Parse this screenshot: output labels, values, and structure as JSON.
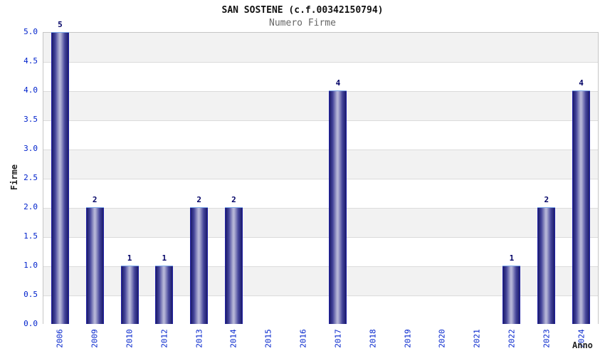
{
  "header": {
    "title": "SAN SOSTENE (c.f.00342150794)",
    "subtitle": "Numero Firme"
  },
  "chart_data": {
    "type": "bar",
    "title": "SAN SOSTENE (c.f.00342150794)",
    "subtitle": "Numero Firme",
    "xlabel": "Anno",
    "ylabel": "Firme",
    "categories": [
      "2006",
      "2009",
      "2010",
      "2012",
      "2013",
      "2014",
      "2015",
      "2016",
      "2017",
      "2018",
      "2019",
      "2020",
      "2021",
      "2022",
      "2023",
      "2024"
    ],
    "values": [
      5,
      2,
      1,
      1,
      2,
      2,
      0,
      0,
      4,
      0,
      0,
      0,
      0,
      1,
      2,
      4
    ],
    "ylim": [
      0,
      5
    ],
    "ytick_step": 0.5,
    "ytick_labels": [
      "0.0",
      "0.5",
      "1.0",
      "1.5",
      "2.0",
      "2.5",
      "3.0",
      "3.5",
      "4.0",
      "4.5",
      "5.0"
    ],
    "grid": true,
    "legend_position": "none",
    "band_style": "alternating horizontal stripes every 0.5 units"
  },
  "colors": {
    "tick_label_blue": "#0022cc",
    "value_label_navy": "#000066",
    "title_color": "#111111",
    "subtitle_gray": "#666666",
    "axis_title_color": "#222222",
    "band_gray": "#f2f2f2",
    "band_white": "#ffffff",
    "grid_line": "#dbdbdb",
    "plot_border": "#c6c6c6",
    "bar_edge_bright": "#2323c8",
    "bar_dark": "#1e1e6e",
    "bar_mid": "#44449a",
    "bar_light": "#b4b4d6",
    "bar_top_highlight": "#7aa6e8"
  }
}
